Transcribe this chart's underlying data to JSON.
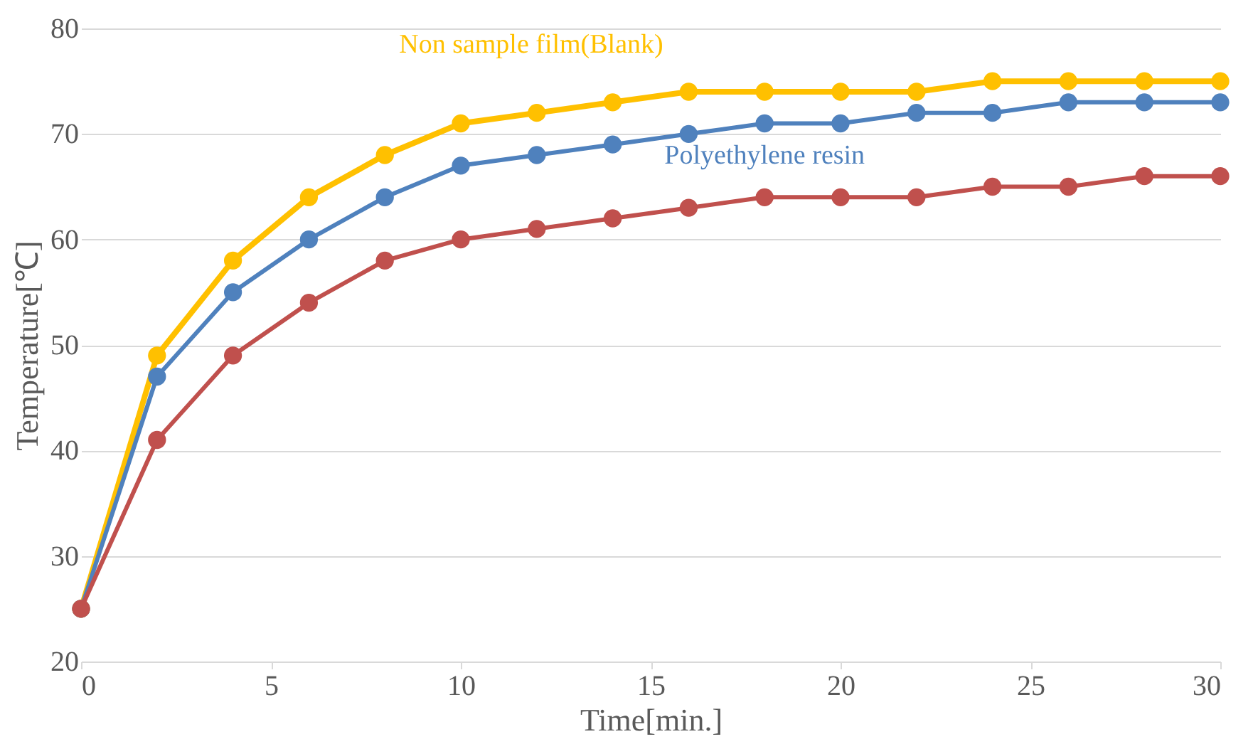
{
  "chart_data": {
    "type": "line",
    "xlabel": "Time[min.]",
    "ylabel": "Temperature[℃]",
    "x": [
      0,
      2,
      4,
      6,
      8,
      10,
      12,
      14,
      16,
      18,
      20,
      22,
      24,
      26,
      28,
      30
    ],
    "xlim": [
      0,
      30
    ],
    "xticks": [
      0,
      5,
      10,
      15,
      20,
      25,
      30
    ],
    "ylim": [
      20,
      80
    ],
    "yticks": [
      20,
      30,
      40,
      50,
      60,
      70,
      80
    ],
    "grid": "y",
    "marker": "circle",
    "line_style": "solid",
    "series": [
      {
        "name": "Non sample film(Blank)",
        "color": "#ffc000",
        "values": [
          25,
          49,
          58,
          64,
          68,
          71,
          72,
          73,
          74,
          74,
          74,
          74,
          75,
          75,
          75,
          75
        ]
      },
      {
        "name": "Polyethylene resin",
        "color": "#4f81bd",
        "values": [
          25,
          47,
          55,
          60,
          64,
          67,
          68,
          69,
          70,
          71,
          71,
          72,
          72,
          73,
          73,
          73
        ]
      },
      {
        "color": "#c0504d",
        "values": [
          25,
          41,
          49,
          54,
          58,
          60,
          61,
          62,
          63,
          64,
          64,
          64,
          65,
          65,
          66,
          66
        ]
      }
    ]
  }
}
